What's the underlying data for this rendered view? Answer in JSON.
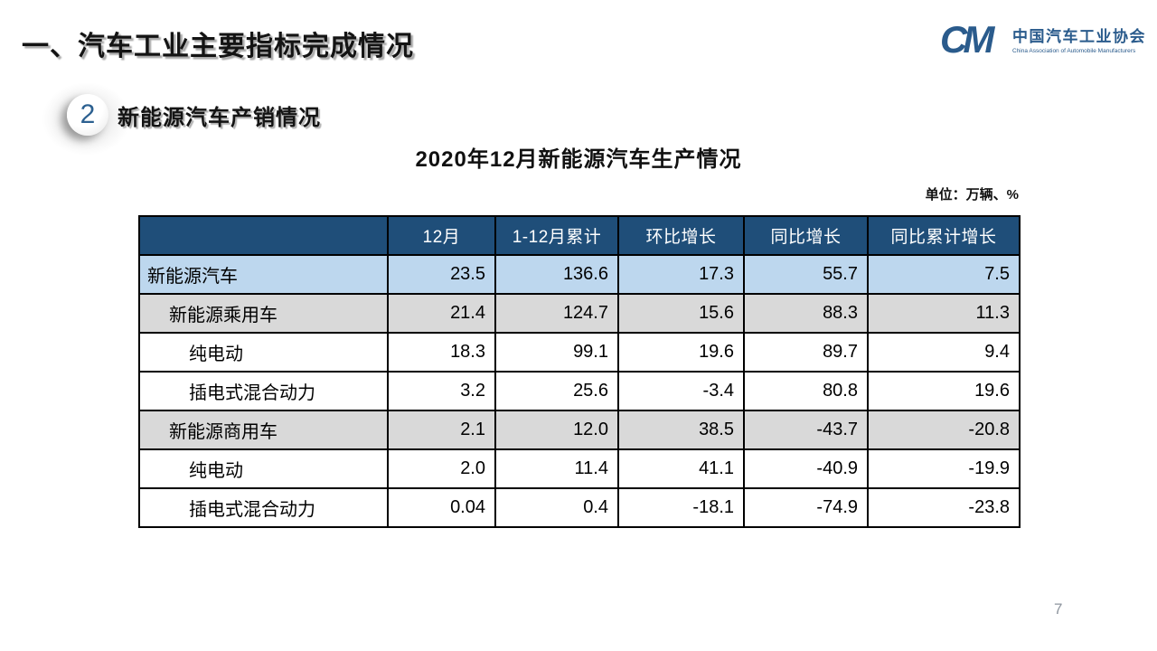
{
  "slide": {
    "title_prefix": "一、",
    "title_text": "汽车工业主要指标完成情况",
    "section_number": "2",
    "section_heading": "新能源汽车产销情况",
    "table_title": "2020年12月新能源汽车生产情况",
    "unit_label": "单位：万辆、%",
    "page_number": "7"
  },
  "logo": {
    "mark": "CM",
    "name_cn": "中国汽车工业协会",
    "name_en": "China Association of Automobile Manufacturers"
  },
  "colors": {
    "header_bg": "#1F4E79",
    "row_blue": "#BDD7EE",
    "row_gray": "#D9D9D9",
    "logo_blue": "#2A5B8C",
    "circle_number_blue": "#2C6090",
    "page_number_gray": "#8E959E"
  },
  "chart_data": {
    "type": "table",
    "title": "2020年12月新能源汽车生产情况",
    "unit": "万辆、%",
    "columns": [
      "",
      "12月",
      "1-12月累计",
      "环比增长",
      "同比增长",
      "同比累计增长"
    ],
    "rows": [
      {
        "label": "新能源汽车",
        "indent": 0,
        "style": "blue",
        "values": [
          "23.5",
          "136.6",
          "17.3",
          "55.7",
          "7.5"
        ]
      },
      {
        "label": "新能源乘用车",
        "indent": 1,
        "style": "gray",
        "values": [
          "21.4",
          "124.7",
          "15.6",
          "88.3",
          "11.3"
        ]
      },
      {
        "label": "纯电动",
        "indent": 2,
        "style": "white",
        "values": [
          "18.3",
          "99.1",
          "19.6",
          "89.7",
          "9.4"
        ]
      },
      {
        "label": "插电式混合动力",
        "indent": 2,
        "style": "white",
        "values": [
          "3.2",
          "25.6",
          "-3.4",
          "80.8",
          "19.6"
        ]
      },
      {
        "label": "新能源商用车",
        "indent": 1,
        "style": "gray",
        "values": [
          "2.1",
          "12.0",
          "38.5",
          "-43.7",
          "-20.8"
        ]
      },
      {
        "label": "纯电动",
        "indent": 2,
        "style": "white",
        "values": [
          "2.0",
          "11.4",
          "41.1",
          "-40.9",
          "-19.9"
        ]
      },
      {
        "label": "插电式混合动力",
        "indent": 2,
        "style": "white",
        "values": [
          "0.04",
          "0.4",
          "-18.1",
          "-74.9",
          "-23.8"
        ]
      }
    ]
  }
}
